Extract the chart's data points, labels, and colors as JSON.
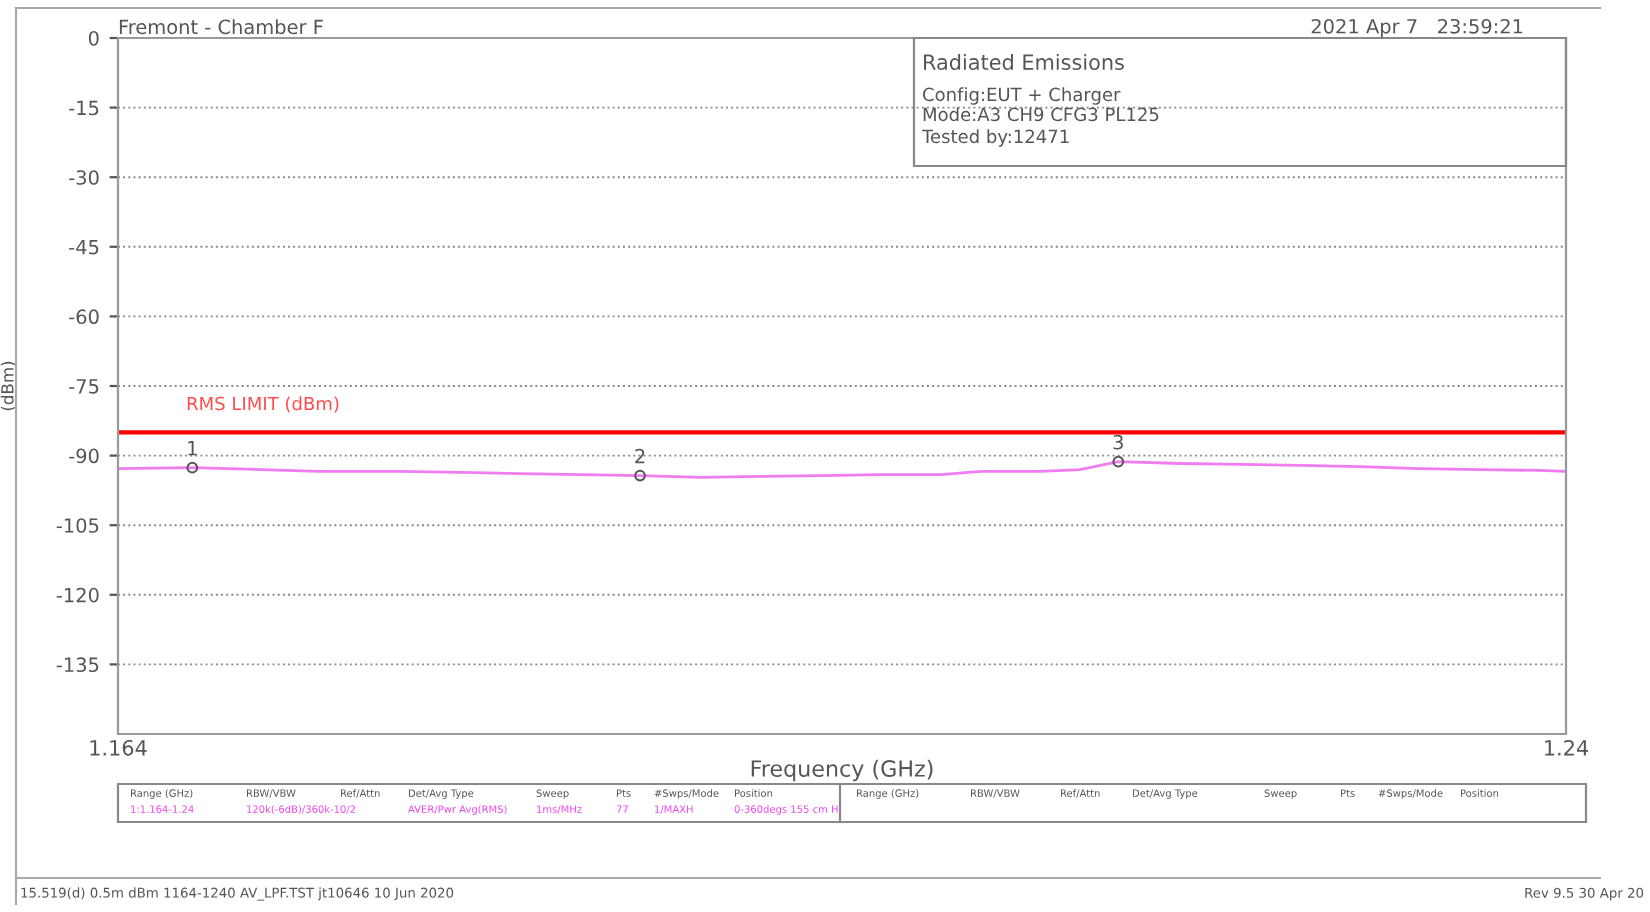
{
  "chart_data": {
    "type": "line",
    "title": "Fremont - Chamber F",
    "xlabel": "Frequency (GHz)",
    "ylabel": "(dBm)",
    "x": [
      1.164,
      1.1679,
      1.1715,
      1.1746,
      1.1788,
      1.182,
      1.1851,
      1.1883,
      1.1914,
      1.1946,
      1.1977,
      1.2009,
      1.204,
      1.2072,
      1.2093,
      1.2124,
      1.2145,
      1.2165,
      1.2198,
      1.2229,
      1.2261,
      1.2292,
      1.2323,
      1.2355,
      1.2386,
      1.24
    ],
    "series": [
      {
        "color": "#f07cf0",
        "values": [
          -92.8,
          -92.6,
          -93.0,
          -93.4,
          -93.4,
          -93.6,
          -93.9,
          -94.1,
          -94.3,
          -94.7,
          -94.5,
          -94.3,
          -94.1,
          -94.1,
          -93.4,
          -93.4,
          -93.0,
          -91.3,
          -91.7,
          -91.9,
          -92.1,
          -92.4,
          -92.8,
          -93.0,
          -93.2,
          -93.4
        ]
      }
    ],
    "xlim": [
      1.164,
      1.24
    ],
    "xticks": [
      1.164,
      1.24
    ],
    "ylim": [
      -150,
      0
    ],
    "yticks": [
      0,
      -15,
      -30,
      -45,
      -60,
      -75,
      -90,
      -105,
      -120,
      -135
    ],
    "grid": "y",
    "marker": "none",
    "line_style": "solid",
    "ref_lines": [
      {
        "axis": "y",
        "value": -85,
        "label": "RMS LIMIT (dBm)",
        "color": "#ff0000"
      }
    ],
    "annotations": [
      {
        "text": "1",
        "x": 1.1679,
        "y": -92.6
      },
      {
        "text": "2",
        "x": 1.1914,
        "y": -94.3
      },
      {
        "text": "3",
        "x": 1.2165,
        "y": -91.3
      },
      "2021 Apr 7   23:59:21",
      "Radiated Emissions",
      "Config:EUT + Charger",
      "Mode:A3 CH9 CFG3 PL125",
      "Tested by:12471",
      "Range (GHz)",
      "RBW/VBW",
      "Ref/Attn",
      "Det/Avg Type",
      "Sweep",
      "Pts",
      "#Swps/Mode",
      "Position",
      "1:1.164-1.24",
      "120k(-6dB)/360k",
      "-10/2",
      "AVER/Pwr Avg(RMS)",
      "1ms/MHz",
      "77",
      "1/MAXH",
      "0-360degs 155 cm H",
      "Range (GHz)",
      "RBW/VBW",
      "Ref/Attn",
      "Det/Avg Type",
      "Sweep",
      "Pts",
      "#Swps/Mode",
      "Position",
      "15.519(d) 0.5m dBm 1164-1240 AV_LPF.TST jt10646 10 Jun 2020",
      "Rev 9.5 30 Apr 20"
    ]
  }
}
